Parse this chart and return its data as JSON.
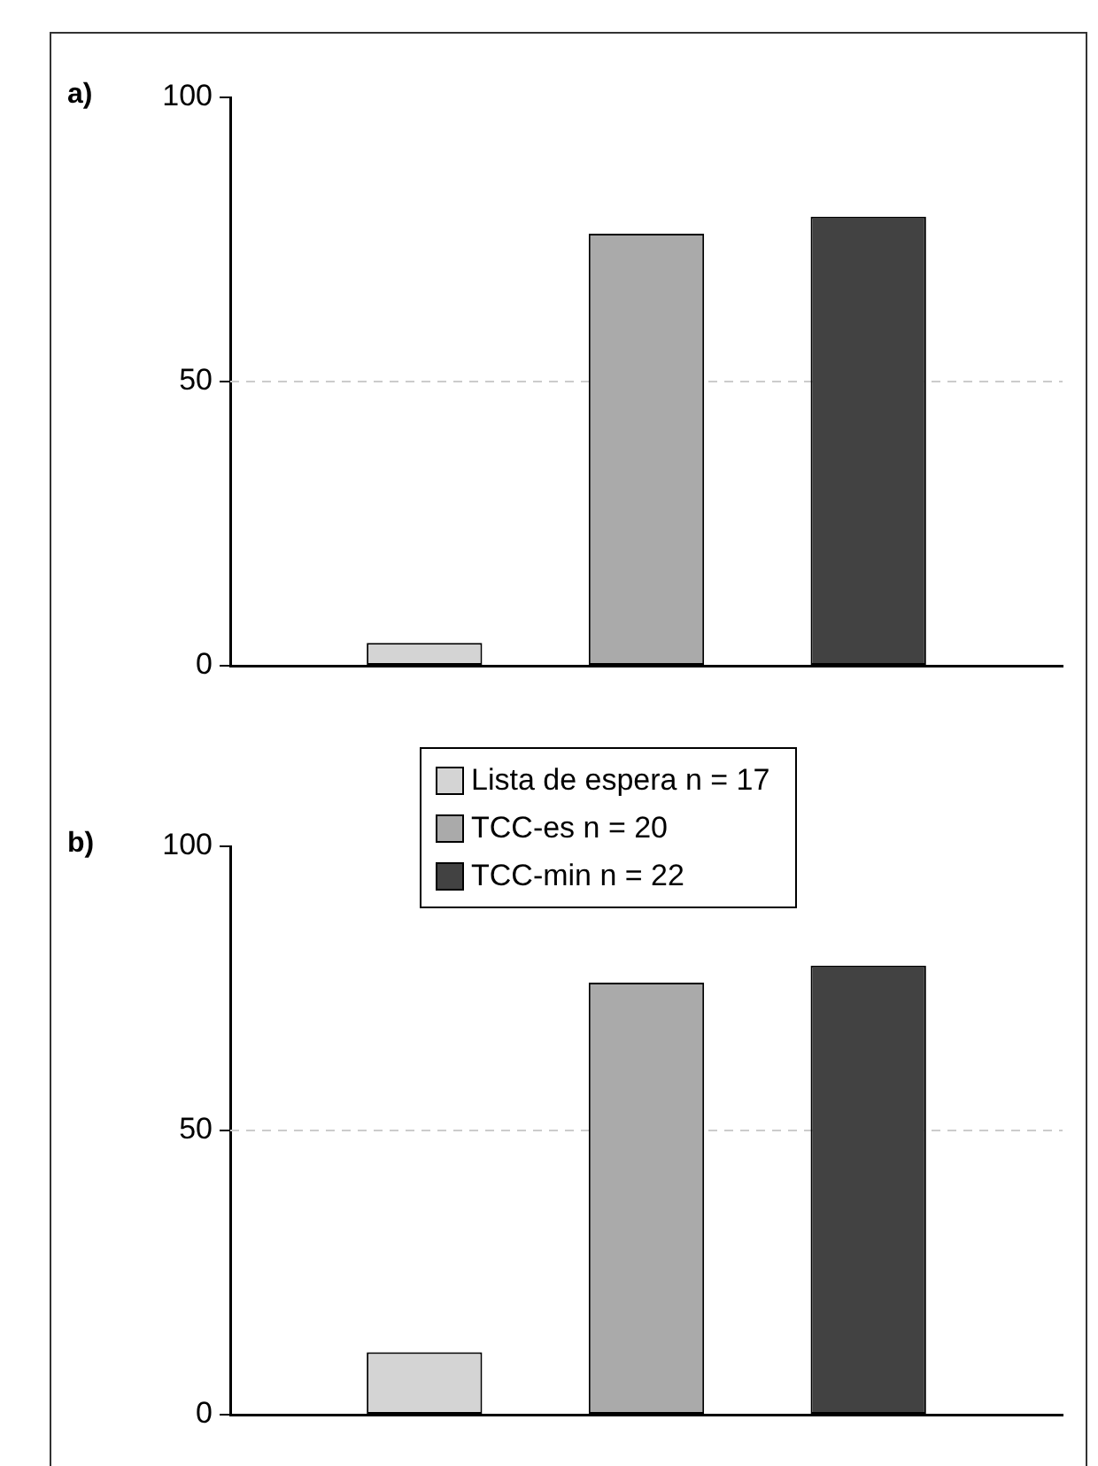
{
  "chart_data": [
    {
      "type": "bar",
      "title": "a)",
      "categories": [
        null
      ],
      "series": [
        {
          "name": "Lista de espera n = 17",
          "color": "#d4d4d4",
          "values": [
            4
          ]
        },
        {
          "name": "TCC-es n = 20",
          "color": "#aaaaaa",
          "values": [
            76
          ]
        },
        {
          "name": "TCC-min n = 22",
          "color": "#424242",
          "values": [
            79
          ]
        }
      ],
      "ylim": [
        0,
        100
      ],
      "yticks": [
        0,
        50,
        100
      ],
      "ref_lines": [
        {
          "axis": "y",
          "value": 50,
          "color": "#cccccc",
          "line_style": "dashed"
        }
      ],
      "legend": "bottom"
    },
    {
      "type": "bar",
      "title": "b)",
      "categories": [
        null
      ],
      "series": [
        {
          "color": "#d4d4d4",
          "values": [
            11
          ]
        },
        {
          "color": "#aaaaaa",
          "values": [
            76
          ]
        },
        {
          "color": "#424242",
          "values": [
            79
          ]
        }
      ],
      "ylim": [
        0,
        100
      ],
      "yticks": [
        0,
        50,
        100
      ],
      "ref_lines": [
        {
          "axis": "y",
          "value": 50,
          "color": "#cccccc",
          "line_style": "dashed"
        }
      ]
    }
  ]
}
